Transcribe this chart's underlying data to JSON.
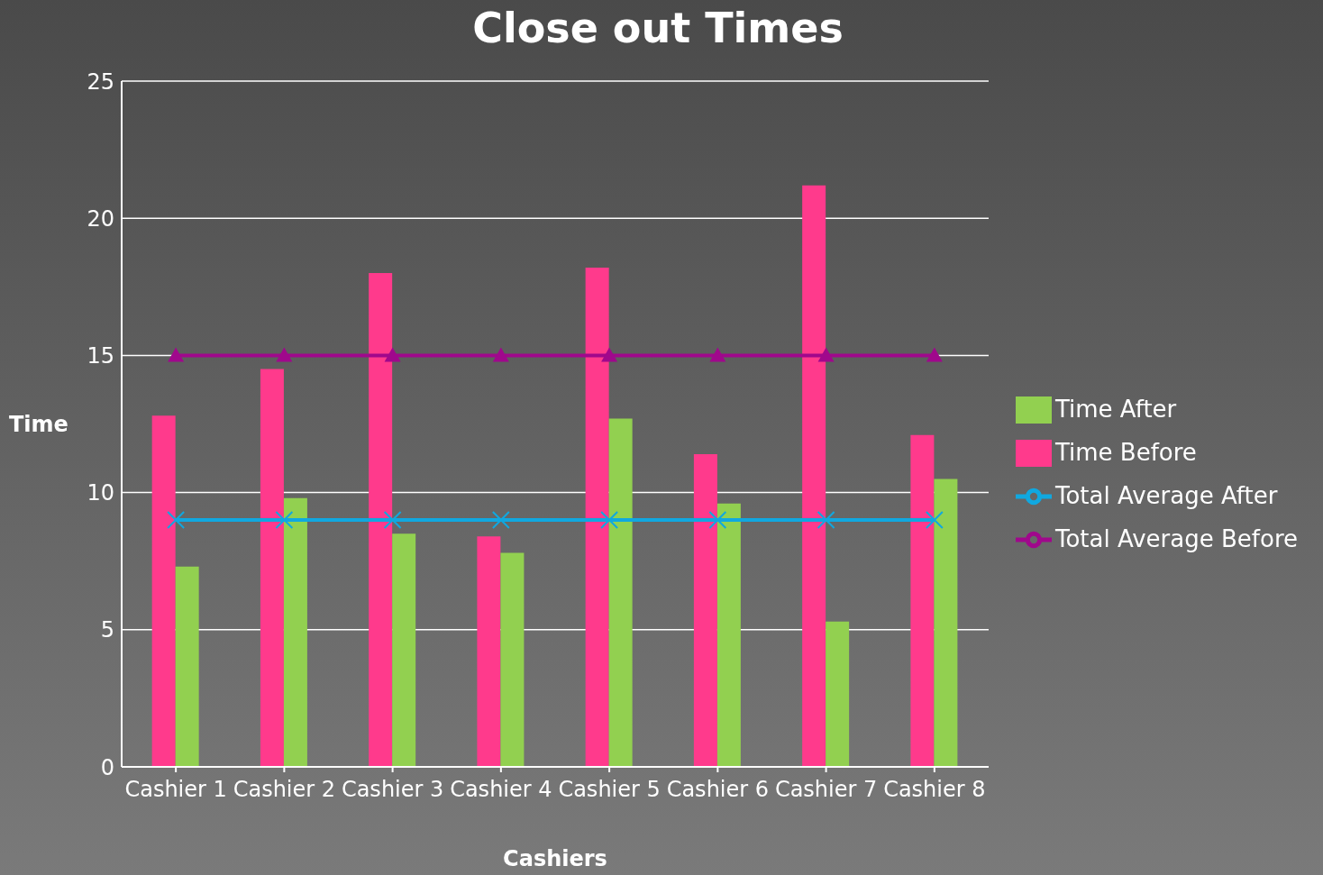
{
  "chart_data": {
    "type": "bar",
    "title": "Close out Times",
    "xlabel": "Cashiers",
    "ylabel": "Time",
    "categories": [
      "Cashier 1",
      "Cashier 2",
      "Cashier 3",
      "Cashier 4",
      "Cashier 5",
      "Cashier 6",
      "Cashier 7",
      "Cashier 8"
    ],
    "series": [
      {
        "name": "Time Before",
        "color": "#ff3a8c",
        "values": [
          12.8,
          14.5,
          18.0,
          8.4,
          18.2,
          11.4,
          21.2,
          12.1
        ]
      },
      {
        "name": "Time After",
        "color": "#92d050",
        "values": [
          7.3,
          9.8,
          8.5,
          7.8,
          12.7,
          9.6,
          5.3,
          10.5
        ]
      },
      {
        "name": "Total Average Before",
        "type": "line",
        "marker": "triangle",
        "color": "#a0088c",
        "values": [
          15,
          15,
          15,
          15,
          15,
          15,
          15,
          15
        ]
      },
      {
        "name": "Total Average After",
        "type": "line",
        "marker": "cross",
        "color": "#10a8e0",
        "values": [
          9,
          9,
          9,
          9,
          9,
          9,
          9,
          9
        ]
      }
    ],
    "ylim": [
      0,
      25
    ],
    "yticks": [
      0,
      5,
      10,
      15,
      20,
      25
    ],
    "grid": "y",
    "legend": "right"
  }
}
